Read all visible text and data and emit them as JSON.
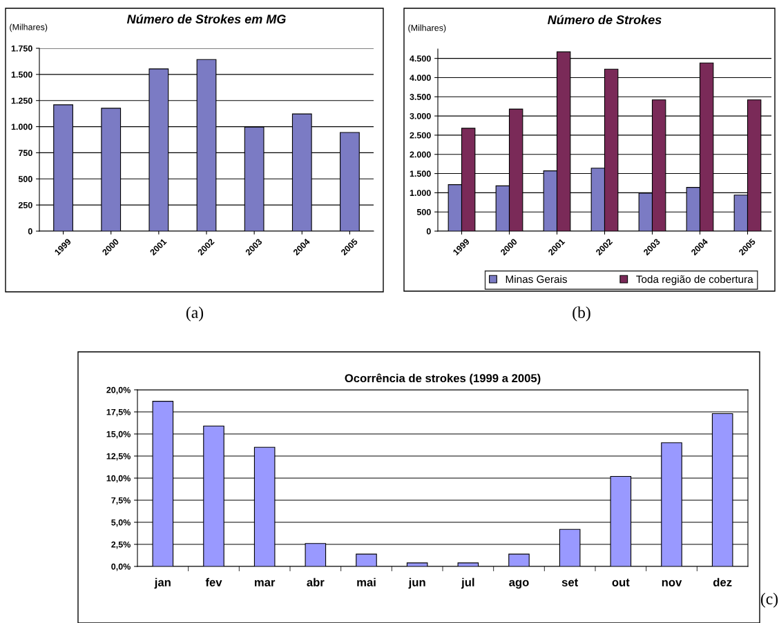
{
  "chart_data": [
    {
      "type": "bar",
      "title": "Número de Strokes em MG",
      "ylabel": "(Milhares)",
      "categories": [
        "1999",
        "2000",
        "2001",
        "2002",
        "2003",
        "2004",
        "2005"
      ],
      "series": [
        {
          "color": "#7b7bc4",
          "values": [
            1209,
            1176,
            1553,
            1643,
            996,
            1122,
            944
          ]
        }
      ],
      "ylim": [
        0,
        1750
      ],
      "yticks": [
        0,
        250,
        500,
        750,
        {
          "value": 1000,
          "label": "1.000"
        },
        {
          "value": 1250,
          "label": "1.250"
        },
        {
          "value": 1500,
          "label": "1.500"
        },
        {
          "value": 1750,
          "label": "1.750"
        }
      ],
      "grid": "y",
      "annotations": [
        "(a)"
      ]
    },
    {
      "type": "bar",
      "title": "Número de Strokes",
      "ylabel": "(Milhares)",
      "categories": [
        "1999",
        "2000",
        "2001",
        "2002",
        "2003",
        "2004",
        "2005"
      ],
      "series": [
        {
          "name": "Minas Gerais",
          "color": "#7b7bc4",
          "values": [
            1210,
            1180,
            1570,
            1640,
            990,
            1140,
            940
          ]
        },
        {
          "name": "Toda região de cobertura",
          "color": "#7a2a58",
          "values": [
            2680,
            3180,
            4670,
            4220,
            3420,
            4380,
            3420
          ]
        }
      ],
      "ylim": [
        0,
        4745
      ],
      "yticks": [
        0,
        500,
        {
          "value": 1000,
          "label": "1.000"
        },
        {
          "value": 1500,
          "label": "1.500"
        },
        {
          "value": 2000,
          "label": "2.000"
        },
        {
          "value": 2500,
          "label": "2.500"
        },
        {
          "value": 3000,
          "label": "3.000"
        },
        {
          "value": 3500,
          "label": "3.500"
        },
        {
          "value": 4000,
          "label": "4.000"
        },
        {
          "value": 4500,
          "label": "4.500"
        }
      ],
      "grid": "y",
      "legend": "bottom",
      "annotations": [
        "(b)"
      ]
    },
    {
      "type": "bar",
      "title": "Ocorrência de strokes (1999 a 2005)",
      "categories": [
        "jan",
        "fev",
        "mar",
        "abr",
        "mai",
        "jun",
        "jul",
        "ago",
        "set",
        "out",
        "nov",
        "dez"
      ],
      "series": [
        {
          "color": "#9999ff",
          "values": [
            18.7,
            15.9,
            13.5,
            2.6,
            1.4,
            0.4,
            0.4,
            1.4,
            4.2,
            10.2,
            14.0,
            17.3
          ]
        }
      ],
      "ylim": [
        0,
        20
      ],
      "yticks": [
        {
          "value": 0,
          "label": "0,0%"
        },
        {
          "value": 2.5,
          "label": "2,5%"
        },
        {
          "value": 5,
          "label": "5,0%"
        },
        {
          "value": 7.5,
          "label": "7,5%"
        },
        {
          "value": 10,
          "label": "10,0%"
        },
        {
          "value": 12.5,
          "label": "12,5%"
        },
        {
          "value": 15,
          "label": "15,0%"
        },
        {
          "value": 17.5,
          "label": "17,5%"
        },
        {
          "value": 20,
          "label": "20,0%"
        }
      ],
      "grid": "y",
      "annotations": [
        "(c)"
      ]
    }
  ]
}
